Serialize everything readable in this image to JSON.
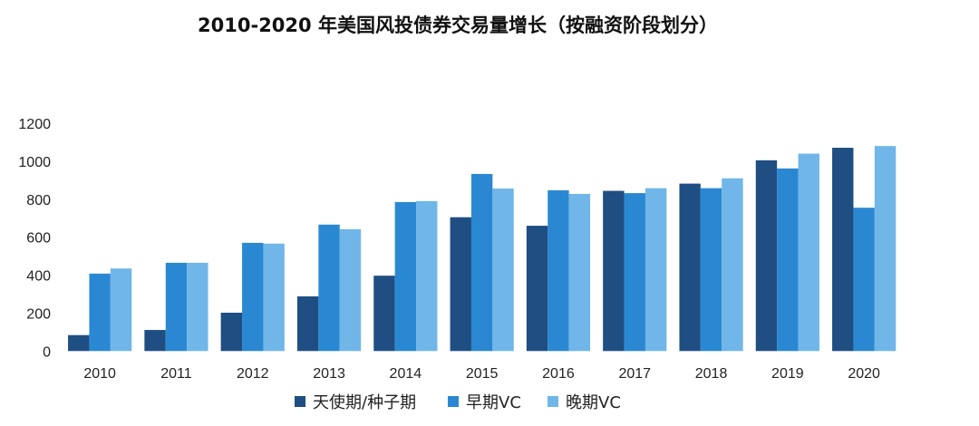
{
  "chart_data": {
    "type": "bar",
    "title": "2010-2020 年美国风投债券交易量增长（按融资阶段划分）",
    "xlabel": "",
    "ylabel": "",
    "ylim": [
      0,
      1200
    ],
    "yticks": [
      0,
      200,
      400,
      600,
      800,
      1000,
      1200
    ],
    "grid": false,
    "legend": "bottom",
    "categories": [
      "2010",
      "2011",
      "2012",
      "2013",
      "2014",
      "2015",
      "2016",
      "2017",
      "2018",
      "2019",
      "2020"
    ],
    "series": [
      {
        "name": "天使期/种子期",
        "color": "#1f4e82",
        "values": [
          84,
          111,
          202,
          288,
          397,
          705,
          660,
          844,
          882,
          1005,
          1071
        ]
      },
      {
        "name": "早期VC",
        "color": "#2a88d2",
        "values": [
          408,
          465,
          570,
          666,
          785,
          933,
          847,
          832,
          858,
          962,
          755
        ]
      },
      {
        "name": "晚期VC",
        "color": "#70b6e8",
        "values": [
          435,
          465,
          566,
          642,
          790,
          856,
          828,
          858,
          910,
          1040,
          1080
        ]
      }
    ]
  }
}
